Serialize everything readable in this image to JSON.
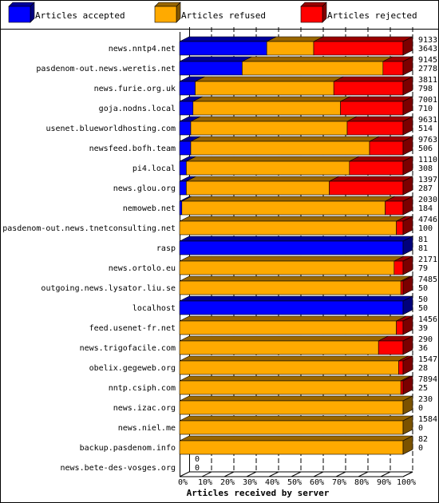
{
  "chart_data": {
    "type": "bar",
    "orientation": "horizontal",
    "stacked": true,
    "percent_stacked": true,
    "title": "",
    "xlabel": "Articles received by server",
    "ylabel": "",
    "xlim": [
      0,
      100
    ],
    "x_ticks": [
      "0%",
      "10%",
      "20%",
      "30%",
      "40%",
      "50%",
      "60%",
      "70%",
      "80%",
      "90%",
      "100%"
    ],
    "grid": "vertical dashed",
    "legend_position": "top",
    "categories": [
      "news.nntp4.net",
      "pasdenom-out.news.weretis.net",
      "news.furie.org.uk",
      "goja.nodns.local",
      "usenet.blueworldhosting.com",
      "newsfeed.bofh.team",
      "pi4.local",
      "news.glou.org",
      "nemoweb.net",
      "pasdenom-out.news.tnetconsulting.net",
      "rasp",
      "news.ortolo.eu",
      "outgoing.news.lysator.liu.se",
      "localhost",
      "feed.usenet-fr.net",
      "news.trigofacile.com",
      "obelix.gegeweb.org",
      "nntp.csiph.com",
      "news.izac.org",
      "news.niel.me",
      "backup.pasdenom.info",
      "news.bete-des-vosges.org"
    ],
    "series": [
      {
        "name": "Articles accepted",
        "color": "#0000ff",
        "values": [
          39,
          28,
          7,
          6,
          5,
          5,
          3,
          3,
          1,
          0,
          100,
          0,
          0,
          100,
          0,
          0,
          0,
          0,
          0,
          0,
          0,
          0
        ]
      },
      {
        "name": "Articles refused",
        "color": "#ffaa00",
        "values": [
          21,
          63,
          62,
          66,
          70,
          80,
          73,
          64,
          91,
          97,
          0,
          96,
          99,
          0,
          97,
          89,
          98,
          99,
          100,
          100,
          100,
          0
        ]
      },
      {
        "name": "Articles rejected",
        "color": "#ff0000",
        "values": [
          40,
          9,
          31,
          28,
          25,
          15,
          24,
          33,
          8,
          3,
          0,
          4,
          1,
          0,
          3,
          11,
          2,
          1,
          0,
          0,
          0,
          0
        ]
      }
    ],
    "value_labels_top": [
      "9133",
      "9145",
      "3811",
      "7001",
      "9631",
      "9763",
      "1110",
      "1397",
      "2030",
      "4746",
      "81",
      "2171",
      "7485",
      "50",
      "1456",
      "290",
      "1547",
      "7894",
      "230",
      "1584",
      "82",
      "0"
    ],
    "value_labels_bottom": [
      "3643",
      "2778",
      "798",
      "710",
      "514",
      "506",
      "308",
      "287",
      "184",
      "100",
      "81",
      "79",
      "50",
      "50",
      "39",
      "36",
      "28",
      "25",
      "0",
      "0",
      "0",
      "0"
    ]
  },
  "colors": {
    "frame": "#000000",
    "background": "#ffffff",
    "side_shade": "0.6"
  }
}
